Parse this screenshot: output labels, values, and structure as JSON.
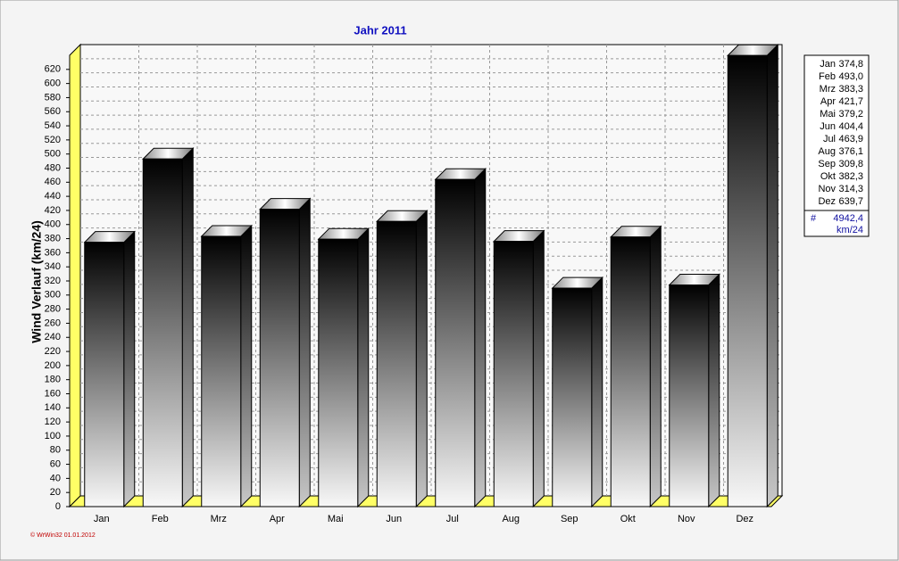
{
  "chart_data": {
    "type": "bar3d",
    "title": "Jahr  2011",
    "y_label": "Wind Verlauf  (km/24)",
    "categories": [
      "Jan",
      "Feb",
      "Mrz",
      "Apr",
      "Mai",
      "Jun",
      "Jul",
      "Aug",
      "Sep",
      "Okt",
      "Nov",
      "Dez"
    ],
    "values": [
      374.8,
      493.0,
      383.3,
      421.7,
      379.2,
      404.4,
      463.9,
      376.1,
      309.8,
      382.3,
      314.3,
      639.7
    ],
    "value_labels": [
      "374,8",
      "493,0",
      "383,3",
      "421,7",
      "379,2",
      "404,4",
      "463,9",
      "376,1",
      "309,8",
      "382,3",
      "314,3",
      "639,7"
    ],
    "ylim": [
      0,
      640
    ],
    "yticks": [
      0,
      20,
      40,
      60,
      80,
      100,
      120,
      140,
      160,
      180,
      200,
      220,
      240,
      260,
      280,
      300,
      320,
      340,
      360,
      380,
      400,
      420,
      440,
      460,
      480,
      500,
      520,
      540,
      560,
      580,
      600,
      620
    ],
    "grid": true,
    "legend": {
      "total_symbol": "#",
      "total": "4942,4",
      "unit": "km/24"
    },
    "footer": "© WrWin32  01.01.2012"
  }
}
